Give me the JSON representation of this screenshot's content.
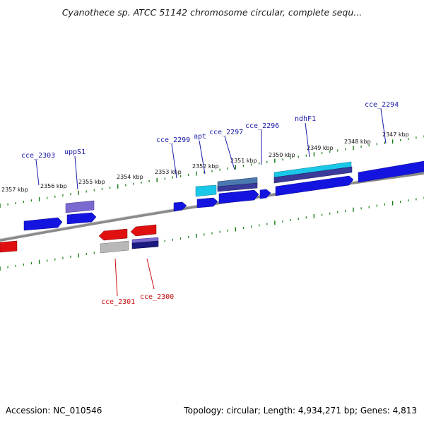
{
  "title": "Cyanothece sp. ATCC 51142 chromosome circular, complete sequ...",
  "footer": {
    "accession_label": "Accession:",
    "accession": "NC_010546",
    "topology_text": "Topology: circular; Length: 4,934,271 bp; Genes: 4,813"
  },
  "scale_labels": [
    "2357 kbp",
    "2356 kbp",
    "2355 kbp",
    "2354 kbp",
    "2353 kbp",
    "2352 kbp",
    "2351 kbp",
    "2350 kbp",
    "2349 kbp",
    "2348 kbp",
    "2347 kbp"
  ],
  "gene_labels_top": [
    "cce_2303",
    "uppS1",
    "cce_2299",
    "apt",
    "cce_2297",
    "cce_2296",
    "ndhF1",
    "cce_2294"
  ],
  "gene_labels_bottom": [
    "cce_2301",
    "cce_2300"
  ],
  "colors": {
    "forward_gene": "#1010e0",
    "reverse_gene": "#e01010",
    "cyan_track": "#19c8e8",
    "steel_track": "#4a78b0",
    "purple_track": "#7a6ad0",
    "navy_track": "#1a1a80",
    "grey_track": "#b8b8b8",
    "label_forward": "#1a1aa8",
    "label_reverse": "#c81010",
    "backbone": "#777777",
    "tick": "#117a11"
  }
}
